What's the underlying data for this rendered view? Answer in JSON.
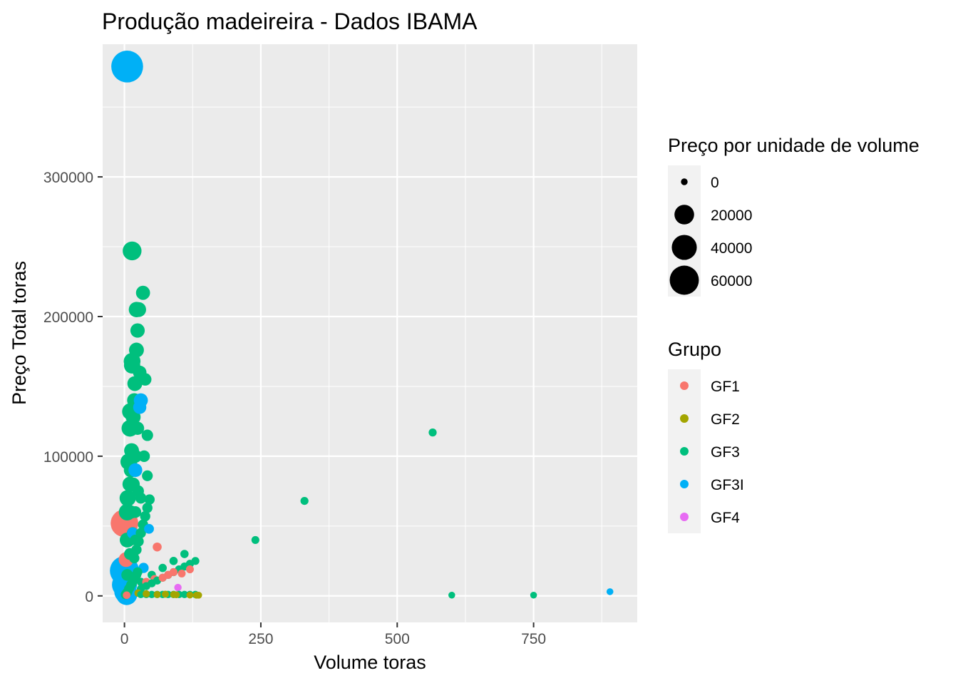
{
  "chart_data": {
    "type": "scatter",
    "title": "Produção madeireira - Dados IBAMA",
    "xlabel": "Volume toras",
    "ylabel": "Preço Total toras",
    "xlim": [
      -40,
      940
    ],
    "ylim": [
      -19000,
      395000
    ],
    "x_ticks": [
      0,
      250,
      500,
      750
    ],
    "x_tick_labels": [
      "0",
      "250",
      "500",
      "750"
    ],
    "y_ticks": [
      0,
      100000,
      200000,
      300000
    ],
    "y_tick_labels": [
      "0",
      "100000",
      "200000",
      "300000"
    ],
    "grid": true,
    "legend_position": "right",
    "size_legend": {
      "title": "Preço por unidade de volume",
      "entries": [
        {
          "label": "0",
          "value": 0
        },
        {
          "label": "20000",
          "value": 20000
        },
        {
          "label": "40000",
          "value": 40000
        },
        {
          "label": "60000",
          "value": 60000
        }
      ]
    },
    "color_legend": {
      "title": "Grupo",
      "entries": [
        {
          "label": "GF1",
          "color": "#F8766D"
        },
        {
          "label": "GF2",
          "color": "#A3A500"
        },
        {
          "label": "GF3",
          "color": "#00BF7D"
        },
        {
          "label": "GF3I",
          "color": "#00B0F6"
        },
        {
          "label": "GF4",
          "color": "#E76BF3"
        }
      ]
    },
    "series": [
      {
        "name": "GF3",
        "color": "#00BF7D",
        "points": [
          [
            2,
            1000,
            1000
          ],
          [
            4,
            2000,
            1000
          ],
          [
            6,
            3000,
            1000
          ],
          [
            8,
            5000,
            1000
          ],
          [
            10,
            6000,
            1000
          ],
          [
            12,
            8000,
            1000
          ],
          [
            14,
            9000,
            1000
          ],
          [
            16,
            11000,
            1000
          ],
          [
            18,
            12000,
            1000
          ],
          [
            20,
            14000,
            1000
          ],
          [
            22,
            15000,
            1000
          ],
          [
            24,
            17000,
            1000
          ],
          [
            5,
            15000,
            3000
          ],
          [
            10,
            30000,
            3000
          ],
          [
            15,
            45000,
            3000
          ],
          [
            20,
            60000,
            3000
          ],
          [
            25,
            75000,
            3000
          ],
          [
            8,
            40000,
            5000
          ],
          [
            12,
            60000,
            5000
          ],
          [
            16,
            80000,
            5000
          ],
          [
            20,
            100000,
            5000
          ],
          [
            24,
            120000,
            5000
          ],
          [
            10,
            80000,
            8000
          ],
          [
            13,
            104000,
            8000
          ],
          [
            16,
            128000,
            8000
          ],
          [
            19,
            152000,
            8000
          ],
          [
            22,
            176000,
            8000
          ],
          [
            5,
            60000,
            12000
          ],
          [
            8,
            96000,
            12000
          ],
          [
            11,
            132000,
            12000
          ],
          [
            14,
            168000,
            12000
          ],
          [
            30,
            5000,
            200
          ],
          [
            40,
            7000,
            200
          ],
          [
            50,
            9000,
            200
          ],
          [
            60,
            11000,
            200
          ],
          [
            70,
            13000,
            200
          ],
          [
            80,
            15000,
            200
          ],
          [
            90,
            17000,
            200
          ],
          [
            100,
            19000,
            200
          ],
          [
            110,
            21000,
            200
          ],
          [
            120,
            23000,
            200
          ],
          [
            130,
            25000,
            200
          ],
          [
            30,
            10000,
            300
          ],
          [
            50,
            15000,
            300
          ],
          [
            70,
            20000,
            300
          ],
          [
            90,
            25000,
            300
          ],
          [
            110,
            30000,
            300
          ],
          [
            18,
            27000,
            1500
          ],
          [
            22,
            33000,
            1500
          ],
          [
            26,
            39000,
            1500
          ],
          [
            30,
            45000,
            1500
          ],
          [
            34,
            51000,
            1500
          ],
          [
            38,
            57000,
            1500
          ],
          [
            42,
            63000,
            1500
          ],
          [
            46,
            69000,
            1500
          ],
          [
            30,
            1000,
            50
          ],
          [
            40,
            1000,
            50
          ],
          [
            50,
            1000,
            50
          ],
          [
            60,
            1000,
            50
          ],
          [
            70,
            1000,
            50
          ],
          [
            80,
            1000,
            50
          ],
          [
            90,
            1000,
            50
          ],
          [
            100,
            1000,
            50
          ],
          [
            110,
            1000,
            50
          ],
          [
            120,
            1000,
            50
          ],
          [
            130,
            1000,
            50
          ],
          [
            12,
            90000,
            7000
          ],
          [
            18,
            140000,
            7000
          ],
          [
            24,
            190000,
            7000
          ],
          [
            28,
            160000,
            5500
          ],
          [
            36,
            100000,
            2800
          ],
          [
            42,
            115000,
            2700
          ],
          [
            38,
            155000,
            4000
          ],
          [
            26,
            205000,
            8000
          ],
          [
            22,
            205000,
            9000
          ],
          [
            14,
            165000,
            11000
          ],
          [
            10,
            120000,
            12000
          ],
          [
            6,
            70000,
            11000
          ],
          [
            5,
            40000,
            8000
          ],
          [
            34,
            217000,
            6500
          ],
          [
            14,
            247000,
            17500
          ],
          [
            42,
            86000,
            2000
          ],
          [
            30,
            70000,
            2300
          ],
          [
            20,
            40000,
            2000
          ],
          [
            240,
            40000,
            170
          ],
          [
            330,
            68000,
            210
          ],
          [
            565,
            117000,
            210
          ],
          [
            600,
            500,
            1
          ],
          [
            750,
            500,
            1
          ]
        ]
      },
      {
        "name": "GF1",
        "color": "#F8766D",
        "points": [
          [
            0,
            52000,
            52000
          ],
          [
            3,
            26000,
            8000
          ],
          [
            4,
            500,
            100
          ],
          [
            40,
            10000,
            250
          ],
          [
            55,
            12000,
            220
          ],
          [
            70,
            13000,
            180
          ],
          [
            80,
            15000,
            190
          ],
          [
            90,
            17000,
            190
          ],
          [
            105,
            16000,
            150
          ],
          [
            120,
            19000,
            160
          ],
          [
            60,
            35000,
            600
          ]
        ]
      },
      {
        "name": "GF2",
        "color": "#A3A500",
        "points": [
          [
            25,
            2000,
            80
          ],
          [
            40,
            1500,
            40
          ],
          [
            60,
            1000,
            20
          ],
          [
            75,
            1200,
            16
          ],
          [
            90,
            1000,
            11
          ],
          [
            95,
            800,
            8
          ],
          [
            120,
            600,
            5
          ],
          [
            132,
            500,
            4
          ],
          [
            136,
            500,
            4
          ]
        ]
      },
      {
        "name": "GF3I",
        "color": "#00B0F6",
        "points": [
          [
            5,
            379000,
            75000
          ],
          [
            0,
            18000,
            60000
          ],
          [
            0,
            8000,
            40000
          ],
          [
            2,
            3000,
            30000
          ],
          [
            4,
            1000,
            25000
          ],
          [
            20,
            90000,
            6000
          ],
          [
            30,
            140000,
            6500
          ],
          [
            28,
            135000,
            5000
          ],
          [
            35,
            20000,
            1500
          ],
          [
            45,
            48000,
            1200
          ],
          [
            15,
            45000,
            2500
          ],
          [
            890,
            3000,
            3
          ]
        ]
      },
      {
        "name": "GF4",
        "color": "#E76BF3",
        "points": [
          [
            98,
            6000,
            60
          ]
        ]
      }
    ]
  }
}
